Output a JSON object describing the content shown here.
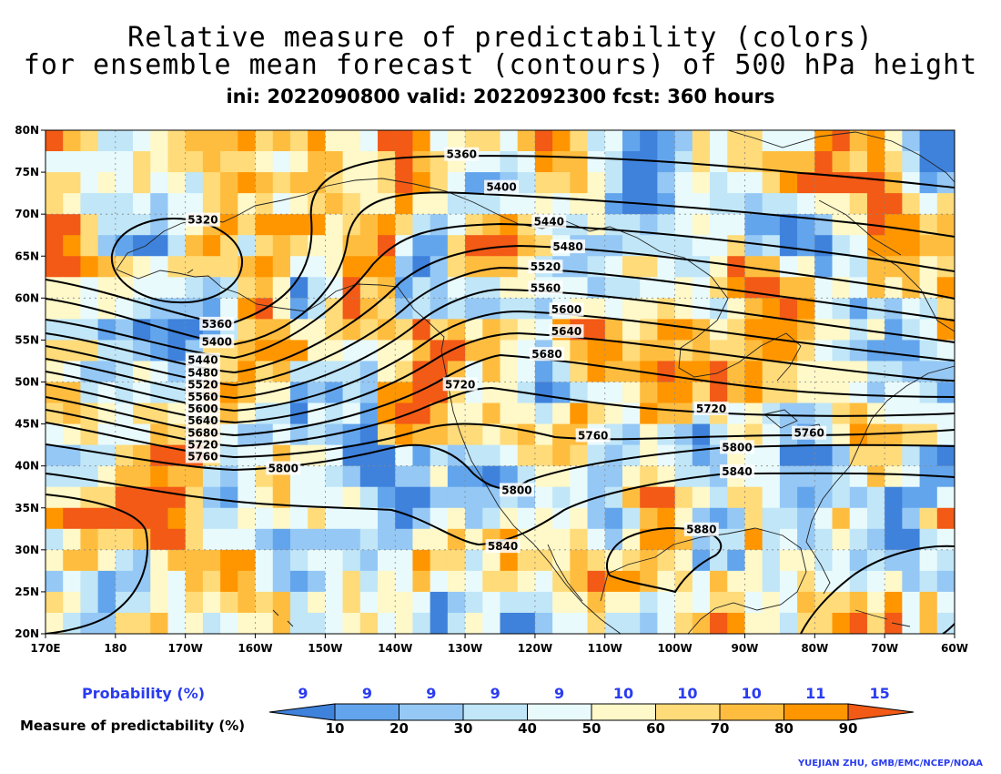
{
  "title_line1": "Relative measure of predictability (colors)",
  "title_line2": "for ensemble mean forecast (contours) of 500 hPa height",
  "title_line3": "ini: 2022090800 valid: 2022092300 fcst: 360 hours",
  "lat_labels": [
    "80N",
    "75N",
    "70N",
    "65N",
    "60N",
    "55N",
    "50N",
    "45N",
    "40N",
    "35N",
    "30N",
    "25N",
    "20N"
  ],
  "lon_labels": [
    "170E",
    "180",
    "170W",
    "160W",
    "150W",
    "140W",
    "130W",
    "120W",
    "110W",
    "100W",
    "90W",
    "80W",
    "70W",
    "60W"
  ],
  "contour_labels": [
    {
      "text": "5320",
      "lon": -167.5,
      "lat": 69.3
    },
    {
      "text": "5360",
      "lon": -130.5,
      "lat": 77.1
    },
    {
      "text": "5360",
      "lon": -165.5,
      "lat": 56.9
    },
    {
      "text": "5400",
      "lon": -124.8,
      "lat": 73.2
    },
    {
      "text": "5400",
      "lon": -165.5,
      "lat": 54.8
    },
    {
      "text": "5440",
      "lon": -118.0,
      "lat": 69.1
    },
    {
      "text": "5440",
      "lon": -167.5,
      "lat": 52.6
    },
    {
      "text": "5480",
      "lon": -115.3,
      "lat": 66.1
    },
    {
      "text": "5480",
      "lon": -167.5,
      "lat": 51.1
    },
    {
      "text": "5520",
      "lon": -118.5,
      "lat": 63.7
    },
    {
      "text": "5520",
      "lon": -167.5,
      "lat": 49.7
    },
    {
      "text": "5560",
      "lon": -118.5,
      "lat": 61.2
    },
    {
      "text": "5560",
      "lon": -167.5,
      "lat": 48.2
    },
    {
      "text": "5600",
      "lon": -115.5,
      "lat": 58.6
    },
    {
      "text": "5600",
      "lon": -167.5,
      "lat": 46.8
    },
    {
      "text": "5640",
      "lon": -115.5,
      "lat": 56.0
    },
    {
      "text": "5640",
      "lon": -167.5,
      "lat": 45.4
    },
    {
      "text": "5680",
      "lon": -118.3,
      "lat": 53.3
    },
    {
      "text": "5680",
      "lon": -167.5,
      "lat": 43.9
    },
    {
      "text": "5720",
      "lon": -130.7,
      "lat": 49.7
    },
    {
      "text": "5720",
      "lon": -94.8,
      "lat": 46.8
    },
    {
      "text": "5720",
      "lon": -167.5,
      "lat": 42.5
    },
    {
      "text": "5760",
      "lon": -111.7,
      "lat": 43.6
    },
    {
      "text": "5760",
      "lon": -80.8,
      "lat": 43.9
    },
    {
      "text": "5760",
      "lon": -167.5,
      "lat": 41.1
    },
    {
      "text": "5800",
      "lon": -156.0,
      "lat": 39.7
    },
    {
      "text": "5800",
      "lon": -122.6,
      "lat": 37.1
    },
    {
      "text": "5800",
      "lon": -91.1,
      "lat": 42.2
    },
    {
      "text": "5840",
      "lon": -124.6,
      "lat": 30.4
    },
    {
      "text": "5840",
      "lon": -91.1,
      "lat": 39.3
    },
    {
      "text": "5880",
      "lon": -96.2,
      "lat": 32.4
    }
  ],
  "legend": {
    "probability_title": "Probability (%)",
    "measure_title": "Measure of predictability (%)",
    "probabilities": [
      "9",
      "9",
      "9",
      "9",
      "9",
      "10",
      "10",
      "10",
      "11",
      "15"
    ],
    "thresholds": [
      "10",
      "20",
      "30",
      "40",
      "50",
      "60",
      "70",
      "80",
      "90"
    ],
    "colors": [
      "#3f82dc",
      "#63a5ec",
      "#95c8f5",
      "#c0e6f8",
      "#e8fafc",
      "#fff8c8",
      "#ffdb7a",
      "#ffbd3f",
      "#ff9600",
      "#f25a16"
    ]
  },
  "credit": "YUEJIAN ZHU, GMB/EMC/NCEP/NOAA"
}
